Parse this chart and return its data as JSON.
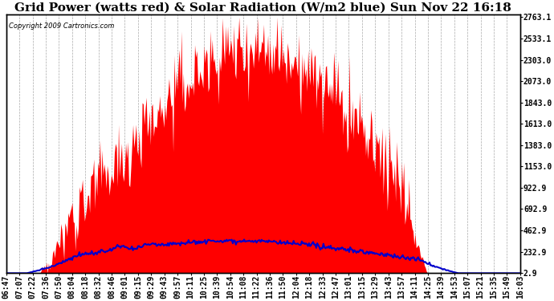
{
  "title": "Grid Power (watts red) & Solar Radiation (W/m2 blue) Sun Nov 22 16:18",
  "copyright": "Copyright 2009 Cartronics.com",
  "ymin": 2.9,
  "ymax": 2763.1,
  "yticks": [
    2.9,
    232.9,
    462.9,
    692.9,
    922.9,
    1153.0,
    1383.0,
    1613.0,
    1843.0,
    2073.0,
    2303.0,
    2533.1,
    2763.1
  ],
  "xtick_labels": [
    "06:47",
    "07:07",
    "07:22",
    "07:36",
    "07:50",
    "08:04",
    "08:18",
    "08:32",
    "08:46",
    "09:01",
    "09:15",
    "09:29",
    "09:43",
    "09:57",
    "10:11",
    "10:25",
    "10:39",
    "10:54",
    "11:08",
    "11:22",
    "11:36",
    "11:50",
    "12:04",
    "12:18",
    "12:33",
    "12:47",
    "13:01",
    "13:15",
    "13:29",
    "13:43",
    "13:57",
    "14:11",
    "14:25",
    "14:39",
    "14:53",
    "15:07",
    "15:21",
    "15:35",
    "15:49",
    "16:03"
  ],
  "background_color": "#ffffff",
  "plot_bg_color": "#ffffff",
  "grid_color": "#aaaaaa",
  "fill_color": "#ff0000",
  "line_color": "#0000cc",
  "title_fontsize": 11,
  "tick_fontsize": 7
}
